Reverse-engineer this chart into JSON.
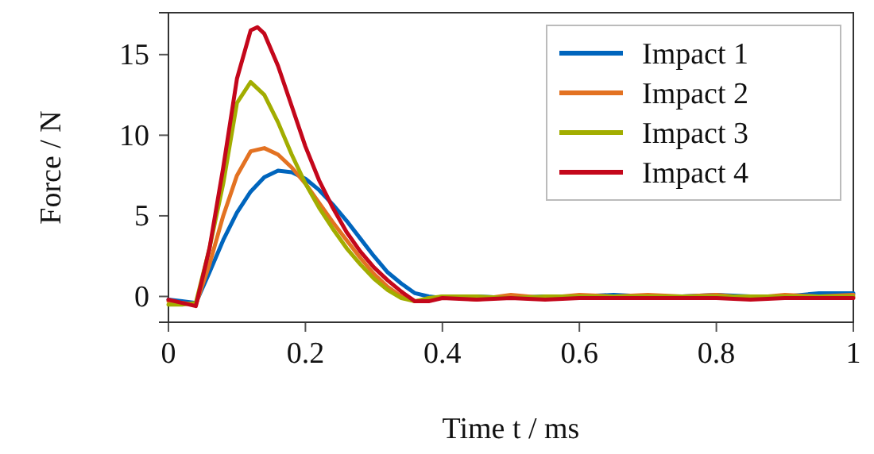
{
  "chart_data": {
    "type": "line",
    "xlabel": "Time t / ms",
    "ylabel": "Force / N",
    "xlim": [
      0,
      1
    ],
    "ylim": [
      -1.6,
      17.6
    ],
    "xticks": [
      0,
      0.2,
      0.4,
      0.6,
      0.8,
      1
    ],
    "yticks": [
      0,
      5,
      10,
      15
    ],
    "grid": false,
    "legend": "top right",
    "marker": "none",
    "line_style": "solid",
    "series": [
      {
        "name": "Impact 1",
        "color": "#0065bd",
        "x": [
          0,
          0.02,
          0.04,
          0.06,
          0.08,
          0.1,
          0.12,
          0.14,
          0.16,
          0.18,
          0.2,
          0.22,
          0.24,
          0.26,
          0.28,
          0.3,
          0.32,
          0.34,
          0.36,
          0.38,
          0.4,
          0.45,
          0.5,
          0.55,
          0.6,
          0.65,
          0.7,
          0.75,
          0.8,
          0.85,
          0.9,
          0.95,
          1
        ],
        "values": [
          -0.2,
          -0.3,
          -0.4,
          1.5,
          3.5,
          5.2,
          6.5,
          7.4,
          7.8,
          7.7,
          7.3,
          6.6,
          5.7,
          4.7,
          3.6,
          2.5,
          1.5,
          0.8,
          0.2,
          0,
          -0.1,
          0,
          -0.1,
          0,
          0,
          0.1,
          0,
          0,
          0.1,
          0,
          0,
          0.2,
          0.2
        ]
      },
      {
        "name": "Impact 2",
        "color": "#e37222",
        "x": [
          0,
          0.02,
          0.04,
          0.06,
          0.08,
          0.1,
          0.12,
          0.14,
          0.16,
          0.18,
          0.2,
          0.22,
          0.24,
          0.26,
          0.28,
          0.3,
          0.32,
          0.34,
          0.36,
          0.38,
          0.4,
          0.45,
          0.5,
          0.55,
          0.6,
          0.65,
          0.7,
          0.75,
          0.8,
          0.85,
          0.9,
          0.95,
          1
        ],
        "values": [
          -0.3,
          -0.4,
          -0.5,
          2,
          5,
          7.5,
          9,
          9.2,
          8.8,
          8,
          7,
          5.8,
          4.6,
          3.5,
          2.4,
          1.4,
          0.6,
          0,
          -0.3,
          -0.2,
          0,
          -0.2,
          0.1,
          -0.1,
          0.1,
          0,
          0.1,
          0,
          0.1,
          -0.1,
          0.1,
          0,
          0.1
        ]
      },
      {
        "name": "Impact 3",
        "color": "#a2ad00",
        "x": [
          0,
          0.02,
          0.04,
          0.06,
          0.08,
          0.1,
          0.12,
          0.14,
          0.16,
          0.18,
          0.2,
          0.22,
          0.24,
          0.26,
          0.28,
          0.3,
          0.32,
          0.34,
          0.36,
          0.38,
          0.4,
          0.45,
          0.5,
          0.55,
          0.6,
          0.65,
          0.7,
          0.75,
          0.8,
          0.85,
          0.9,
          0.95,
          1
        ],
        "values": [
          -0.5,
          -0.5,
          -0.4,
          3,
          7,
          12,
          13.3,
          12.5,
          10.8,
          8.8,
          7,
          5.5,
          4.2,
          3,
          2,
          1.1,
          0.4,
          -0.1,
          -0.3,
          -0.1,
          0,
          0,
          -0.1,
          0,
          0,
          0,
          0,
          0,
          0,
          0,
          0,
          0,
          0
        ]
      },
      {
        "name": "Impact 4",
        "color": "#c4071b",
        "x": [
          0,
          0.02,
          0.04,
          0.06,
          0.08,
          0.1,
          0.12,
          0.13,
          0.14,
          0.16,
          0.18,
          0.2,
          0.22,
          0.24,
          0.26,
          0.28,
          0.3,
          0.32,
          0.34,
          0.36,
          0.38,
          0.4,
          0.45,
          0.5,
          0.55,
          0.6,
          0.65,
          0.7,
          0.75,
          0.8,
          0.85,
          0.9,
          0.95,
          1
        ],
        "values": [
          -0.2,
          -0.4,
          -0.6,
          3,
          8,
          13.5,
          16.5,
          16.7,
          16.3,
          14.3,
          11.8,
          9.3,
          7.2,
          5.5,
          4,
          2.8,
          1.8,
          1,
          0.3,
          -0.3,
          -0.3,
          -0.1,
          -0.2,
          -0.1,
          -0.2,
          -0.1,
          -0.1,
          -0.1,
          -0.1,
          -0.1,
          -0.2,
          -0.1,
          -0.1,
          -0.1
        ]
      }
    ]
  }
}
